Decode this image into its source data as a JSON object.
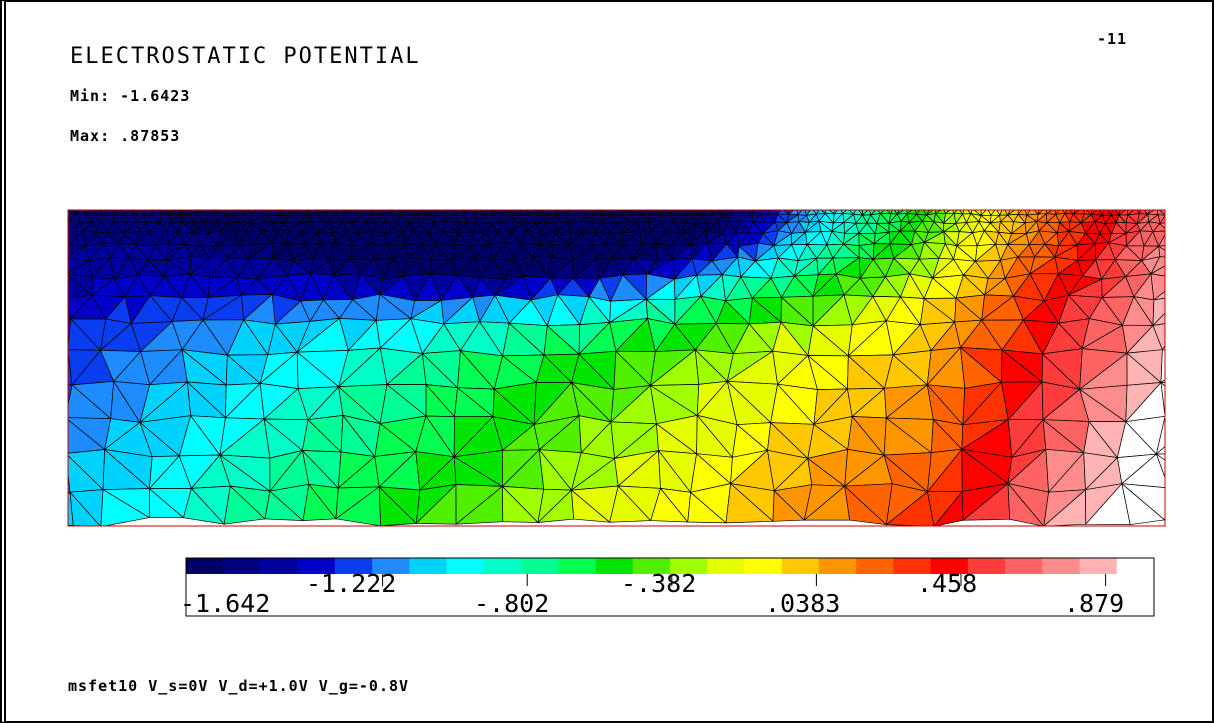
{
  "title": "ELECTROSTATIC POTENTIAL",
  "frame_id": "-11",
  "min": {
    "label": "Min:",
    "value": "-1.6423"
  },
  "max": {
    "label": "Max:",
    "value": ".87853"
  },
  "caption": "msfet10  V_s=0V    V_d=+1.0V    V_g=-0.8V",
  "colorbar": {
    "tick_labels": [
      "-1.642",
      "-1.222",
      "-.802",
      "-.382",
      ".0383",
      ".458",
      ".879"
    ],
    "colors": [
      "#000066",
      "#000080",
      "#00009e",
      "#0000c8",
      "#0a3cf0",
      "#1e8cff",
      "#00d2ff",
      "#00ffff",
      "#00ffc8",
      "#00ff96",
      "#00ff50",
      "#00e600",
      "#50f000",
      "#a0ff00",
      "#e6ff00",
      "#ffff00",
      "#ffc800",
      "#ff9600",
      "#ff6400",
      "#ff3200",
      "#ff0000",
      "#ff3c3c",
      "#ff6464",
      "#ff8c8c",
      "#ffb4b4",
      "#ffffff"
    ]
  }
}
